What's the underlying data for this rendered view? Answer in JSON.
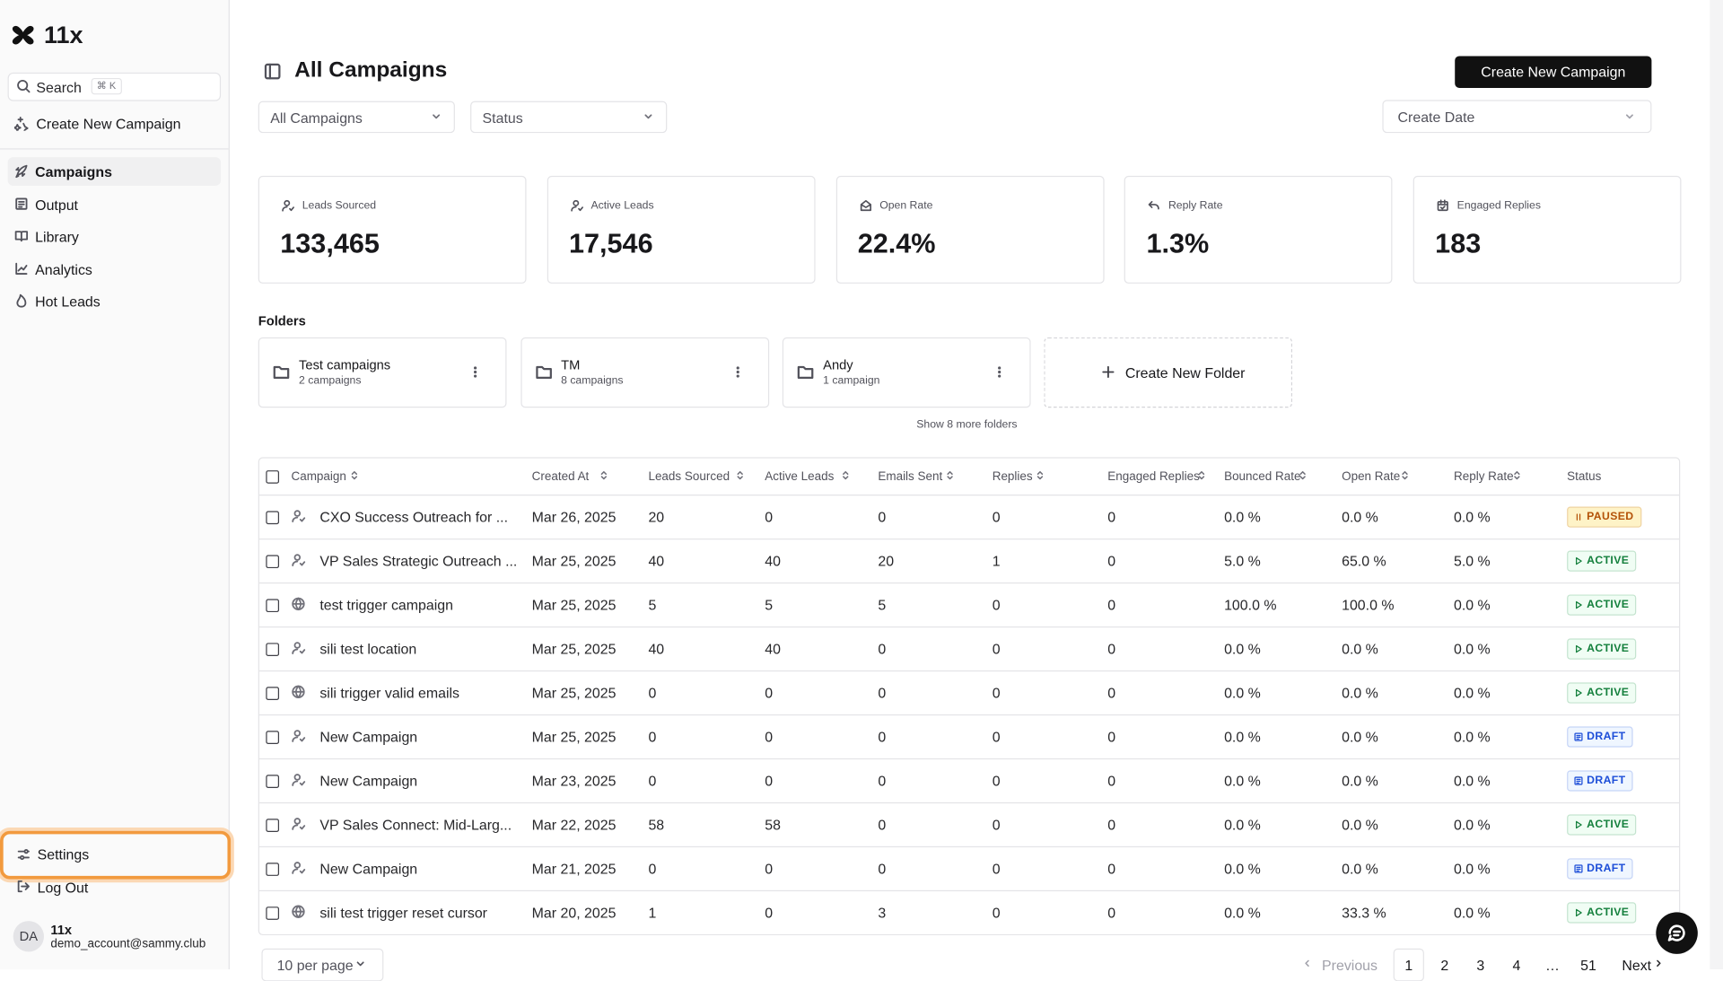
{
  "sidebar": {
    "brand": "11x",
    "search": "Search",
    "shortcut": "⌘ K",
    "create": "Create New Campaign",
    "nav": [
      "Campaigns",
      "Output",
      "Library",
      "Analytics",
      "Hot Leads"
    ],
    "settings": "Settings",
    "logout": "Log Out",
    "user": {
      "initials": "DA",
      "name": "11x",
      "email": "demo_account@sammy.club"
    }
  },
  "header": {
    "title": "All Campaigns",
    "create_button": "Create New Campaign",
    "filters": [
      "All Campaigns",
      "Status"
    ],
    "date_filter": "Create Date"
  },
  "stats": [
    {
      "label": "Leads Sourced",
      "value": "133,465"
    },
    {
      "label": "Active Leads",
      "value": "17,546"
    },
    {
      "label": "Open Rate",
      "value": "22.4%"
    },
    {
      "label": "Reply Rate",
      "value": "1.3%"
    },
    {
      "label": "Engaged Replies",
      "value": "183"
    }
  ],
  "folders": {
    "title": "Folders",
    "items": [
      {
        "name": "Test campaigns",
        "count": "2 campaigns"
      },
      {
        "name": "TM",
        "count": "8 campaigns"
      },
      {
        "name": "Andy",
        "count": "1 campaign"
      }
    ],
    "create": "Create New Folder",
    "more": "Show 8 more folders"
  },
  "table": {
    "columns": [
      "Campaign",
      "Created At",
      "Leads Sourced",
      "Active Leads",
      "Emails Sent",
      "Replies",
      "Engaged Replies",
      "Bounced Rate",
      "Open Rate",
      "Reply Rate",
      "Status"
    ],
    "rows": [
      {
        "icon": "user",
        "tone": "amber",
        "cells": [
          "CXO Success Outreach for ...",
          "Mar 26, 2025",
          "20",
          "0",
          "0",
          "0",
          "0",
          "0.0 %",
          "0.0 %",
          "0.0 %",
          "PAUSED"
        ]
      },
      {
        "icon": "user",
        "tone": "green",
        "cells": [
          "VP Sales Strategic Outreach ...",
          "Mar 25, 2025",
          "40",
          "40",
          "20",
          "1",
          "0",
          "5.0 %",
          "65.0 %",
          "5.0 %",
          "ACTIVE"
        ]
      },
      {
        "icon": "globe",
        "tone": "green",
        "cells": [
          "test trigger campaign",
          "Mar 25, 2025",
          "5",
          "5",
          "5",
          "0",
          "0",
          "100.0 %",
          "100.0 %",
          "0.0 %",
          "ACTIVE"
        ]
      },
      {
        "icon": "user",
        "tone": "green",
        "cells": [
          "sili test location",
          "Mar 25, 2025",
          "40",
          "40",
          "0",
          "0",
          "0",
          "0.0 %",
          "0.0 %",
          "0.0 %",
          "ACTIVE"
        ]
      },
      {
        "icon": "globe",
        "tone": "green",
        "cells": [
          "sili trigger valid emails",
          "Mar 25, 2025",
          "0",
          "0",
          "0",
          "0",
          "0",
          "0.0 %",
          "0.0 %",
          "0.0 %",
          "ACTIVE"
        ]
      },
      {
        "icon": "user",
        "tone": "blue",
        "cells": [
          "New Campaign",
          "Mar 25, 2025",
          "0",
          "0",
          "0",
          "0",
          "0",
          "0.0 %",
          "0.0 %",
          "0.0 %",
          "DRAFT"
        ]
      },
      {
        "icon": "user",
        "tone": "blue",
        "cells": [
          "New Campaign",
          "Mar 23, 2025",
          "0",
          "0",
          "0",
          "0",
          "0",
          "0.0 %",
          "0.0 %",
          "0.0 %",
          "DRAFT"
        ]
      },
      {
        "icon": "user",
        "tone": "green",
        "cells": [
          "VP Sales Connect: Mid-Larg...",
          "Mar 22, 2025",
          "58",
          "58",
          "0",
          "0",
          "0",
          "0.0 %",
          "0.0 %",
          "0.0 %",
          "ACTIVE"
        ]
      },
      {
        "icon": "user",
        "tone": "blue",
        "cells": [
          "New Campaign",
          "Mar 21, 2025",
          "0",
          "0",
          "0",
          "0",
          "0",
          "0.0 %",
          "0.0 %",
          "0.0 %",
          "DRAFT"
        ]
      },
      {
        "icon": "globe",
        "tone": "green",
        "cells": [
          "sili test trigger reset cursor",
          "Mar 20, 2025",
          "1",
          "0",
          "3",
          "0",
          "0",
          "0.0 %",
          "33.3 %",
          "0.0 %",
          "ACTIVE"
        ]
      }
    ]
  },
  "pagination": {
    "per_page": "10 per page",
    "previous": "Previous",
    "pages": [
      "1",
      "2",
      "3",
      "4",
      "…",
      "51"
    ],
    "next": "Next"
  }
}
